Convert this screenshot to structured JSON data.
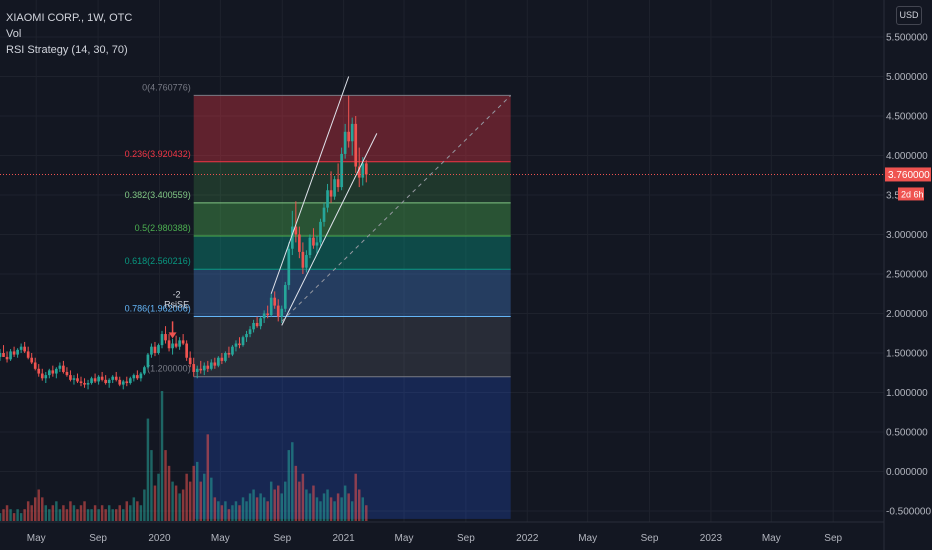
{
  "header": {
    "symbol_line": "XIAOMI CORP., 1W, OTC",
    "indicator_vol": "Vol",
    "indicator_rsi": "RSI Strategy (14, 30, 70)",
    "currency_button": "USD"
  },
  "chart_data": {
    "type": "candlestick",
    "price_axis": {
      "ticks": [
        5.5,
        5.0,
        4.5,
        4.0,
        3.5,
        3.0,
        2.5,
        2.0,
        1.5,
        1.0,
        0.5,
        0.0,
        -0.5
      ],
      "tick_labels": [
        "5.500000",
        "5.000000",
        "4.500000",
        "4.000000",
        "3.5",
        "3.000000",
        "2.500000",
        "2.000000",
        "1.500000",
        "1.000000",
        "0.500000",
        "0.000000",
        "-0.500000"
      ],
      "ylim": [
        -0.6,
        5.8
      ]
    },
    "time_axis": {
      "labels": [
        "May",
        "Sep",
        "2020",
        "May",
        "Sep",
        "2021",
        "May",
        "Sep",
        "2022",
        "May",
        "Sep",
        "2023",
        "May",
        "Sep"
      ],
      "start": "2019-02-18",
      "end": "2023-12-11",
      "label_dates": [
        "2019-05-01",
        "2019-09-01",
        "2020-01-01",
        "2020-05-01",
        "2020-09-01",
        "2021-01-01",
        "2021-05-01",
        "2021-09-01",
        "2022-01-01",
        "2022-05-01",
        "2022-09-01",
        "2023-01-01",
        "2023-05-01",
        "2023-09-01"
      ]
    },
    "current_price": {
      "value": 3.76,
      "label": "3.760000",
      "countdown": "2d 6h"
    },
    "fibonacci": {
      "start_date": "2020-03-09",
      "end_date": "2021-11-29",
      "levels": [
        {
          "ratio_label": "0(4.760776)",
          "price": 4.760776,
          "color": "#787b86",
          "fill": "rgba(242,54,69,0.35)"
        },
        {
          "ratio_label": "0.236(3.920432)",
          "price": 3.920432,
          "color": "#f23645",
          "fill": "rgba(76,175,80,0.22)"
        },
        {
          "ratio_label": "0.382(3.400559)",
          "price": 3.400559,
          "color": "#81c784",
          "fill": "rgba(76,175,80,0.40)"
        },
        {
          "ratio_label": "0.5(2.980388)",
          "price": 2.980388,
          "color": "#4caf50",
          "fill": "rgba(8,153,129,0.40)"
        },
        {
          "ratio_label": "0.618(2.560216)",
          "price": 2.560216,
          "color": "#089981",
          "fill": "rgba(66,120,190,0.40)"
        },
        {
          "ratio_label": "0.786(1.962006)",
          "price": 1.962006,
          "color": "#64b5f6",
          "fill": "rgba(120,123,134,0.22)"
        },
        {
          "ratio_label": "(1.200000)",
          "price": 1.2,
          "color": "#787b86",
          "fill": "rgba(41,98,255,0.22)"
        }
      ],
      "extension_to_price": -0.6
    },
    "signal": {
      "label": "RsiSE",
      "count": "-2",
      "date": "2020-01-27",
      "price": 1.85
    },
    "trend_lines": [
      {
        "from": [
          "2020-08-10",
          2.25
        ],
        "to": [
          "2021-01-11",
          5.0
        ]
      },
      {
        "from": [
          "2020-08-31",
          1.85
        ],
        "to": [
          "2021-03-08",
          4.28
        ]
      },
      {
        "from": [
          "2020-08-31",
          1.9
        ],
        "to": [
          "2021-11-29",
          4.76
        ],
        "dashed": true
      }
    ],
    "candles": [
      [
        "2019-02-18",
        1.45,
        1.55,
        1.4,
        1.5,
        2
      ],
      [
        "2019-02-25",
        1.5,
        1.6,
        1.45,
        1.45,
        3
      ],
      [
        "2019-03-04",
        1.45,
        1.52,
        1.38,
        1.42,
        4
      ],
      [
        "2019-03-11",
        1.42,
        1.55,
        1.4,
        1.52,
        3
      ],
      [
        "2019-03-18",
        1.52,
        1.58,
        1.45,
        1.48,
        2
      ],
      [
        "2019-03-25",
        1.48,
        1.56,
        1.44,
        1.54,
        3
      ],
      [
        "2019-04-01",
        1.54,
        1.62,
        1.5,
        1.58,
        2
      ],
      [
        "2019-04-08",
        1.58,
        1.64,
        1.5,
        1.52,
        3
      ],
      [
        "2019-04-15",
        1.52,
        1.58,
        1.42,
        1.44,
        5
      ],
      [
        "2019-04-22",
        1.44,
        1.5,
        1.36,
        1.38,
        4
      ],
      [
        "2019-04-29",
        1.38,
        1.44,
        1.28,
        1.3,
        6
      ],
      [
        "2019-05-06",
        1.3,
        1.36,
        1.2,
        1.24,
        8
      ],
      [
        "2019-05-13",
        1.24,
        1.3,
        1.15,
        1.18,
        6
      ],
      [
        "2019-05-20",
        1.18,
        1.26,
        1.12,
        1.22,
        4
      ],
      [
        "2019-05-27",
        1.22,
        1.3,
        1.18,
        1.28,
        3
      ],
      [
        "2019-06-03",
        1.28,
        1.34,
        1.2,
        1.24,
        4
      ],
      [
        "2019-06-10",
        1.24,
        1.32,
        1.18,
        1.3,
        5
      ],
      [
        "2019-06-17",
        1.3,
        1.38,
        1.26,
        1.34,
        3
      ],
      [
        "2019-06-24",
        1.34,
        1.4,
        1.24,
        1.26,
        4
      ],
      [
        "2019-07-01",
        1.26,
        1.32,
        1.2,
        1.22,
        3
      ],
      [
        "2019-07-08",
        1.22,
        1.28,
        1.14,
        1.16,
        5
      ],
      [
        "2019-07-15",
        1.16,
        1.22,
        1.1,
        1.18,
        4
      ],
      [
        "2019-07-22",
        1.18,
        1.24,
        1.12,
        1.14,
        3
      ],
      [
        "2019-07-29",
        1.14,
        1.2,
        1.08,
        1.12,
        4
      ],
      [
        "2019-08-05",
        1.12,
        1.18,
        1.06,
        1.1,
        5
      ],
      [
        "2019-08-12",
        1.1,
        1.16,
        1.04,
        1.12,
        3
      ],
      [
        "2019-08-19",
        1.12,
        1.2,
        1.1,
        1.18,
        3
      ],
      [
        "2019-08-26",
        1.18,
        1.24,
        1.12,
        1.14,
        4
      ],
      [
        "2019-09-02",
        1.14,
        1.22,
        1.1,
        1.2,
        3
      ],
      [
        "2019-09-09",
        1.2,
        1.26,
        1.14,
        1.16,
        4
      ],
      [
        "2019-09-16",
        1.16,
        1.22,
        1.1,
        1.12,
        3
      ],
      [
        "2019-09-23",
        1.12,
        1.18,
        1.06,
        1.16,
        4
      ],
      [
        "2019-09-30",
        1.16,
        1.22,
        1.12,
        1.2,
        3
      ],
      [
        "2019-10-07",
        1.2,
        1.26,
        1.14,
        1.16,
        3
      ],
      [
        "2019-10-14",
        1.16,
        1.2,
        1.08,
        1.1,
        4
      ],
      [
        "2019-10-21",
        1.1,
        1.16,
        1.04,
        1.14,
        3
      ],
      [
        "2019-10-28",
        1.14,
        1.2,
        1.08,
        1.12,
        5
      ],
      [
        "2019-11-04",
        1.12,
        1.2,
        1.1,
        1.18,
        4
      ],
      [
        "2019-11-11",
        1.18,
        1.24,
        1.14,
        1.22,
        6
      ],
      [
        "2019-11-18",
        1.22,
        1.28,
        1.16,
        1.18,
        5
      ],
      [
        "2019-11-25",
        1.18,
        1.26,
        1.14,
        1.24,
        4
      ],
      [
        "2019-12-02",
        1.24,
        1.34,
        1.22,
        1.32,
        8
      ],
      [
        "2019-12-09",
        1.32,
        1.5,
        1.3,
        1.48,
        26
      ],
      [
        "2019-12-16",
        1.48,
        1.62,
        1.44,
        1.58,
        18
      ],
      [
        "2019-12-23",
        1.58,
        1.64,
        1.46,
        1.5,
        9
      ],
      [
        "2019-12-30",
        1.5,
        1.62,
        1.48,
        1.6,
        12
      ],
      [
        "2020-01-06",
        1.6,
        1.78,
        1.56,
        1.74,
        33
      ],
      [
        "2020-01-13",
        1.74,
        1.84,
        1.62,
        1.66,
        18
      ],
      [
        "2020-01-20",
        1.66,
        1.74,
        1.52,
        1.56,
        14
      ],
      [
        "2020-01-27",
        1.56,
        1.68,
        1.48,
        1.62,
        10
      ],
      [
        "2020-02-03",
        1.62,
        1.72,
        1.56,
        1.58,
        9
      ],
      [
        "2020-02-10",
        1.58,
        1.7,
        1.54,
        1.66,
        7
      ],
      [
        "2020-02-17",
        1.66,
        1.74,
        1.6,
        1.62,
        8
      ],
      [
        "2020-02-24",
        1.62,
        1.66,
        1.4,
        1.44,
        12
      ],
      [
        "2020-03-02",
        1.44,
        1.52,
        1.32,
        1.36,
        10
      ],
      [
        "2020-03-09",
        1.36,
        1.44,
        1.2,
        1.26,
        14
      ],
      [
        "2020-03-16",
        1.26,
        1.34,
        1.18,
        1.3,
        15
      ],
      [
        "2020-03-23",
        1.3,
        1.4,
        1.24,
        1.28,
        10
      ],
      [
        "2020-03-30",
        1.28,
        1.38,
        1.22,
        1.34,
        12
      ],
      [
        "2020-04-06",
        1.34,
        1.4,
        1.26,
        1.3,
        22
      ],
      [
        "2020-04-13",
        1.3,
        1.42,
        1.28,
        1.38,
        11
      ],
      [
        "2020-04-20",
        1.38,
        1.44,
        1.3,
        1.34,
        6
      ],
      [
        "2020-04-27",
        1.34,
        1.46,
        1.32,
        1.44,
        5
      ],
      [
        "2020-05-04",
        1.44,
        1.5,
        1.36,
        1.4,
        4
      ],
      [
        "2020-05-11",
        1.4,
        1.52,
        1.38,
        1.5,
        5
      ],
      [
        "2020-05-18",
        1.5,
        1.58,
        1.44,
        1.48,
        3
      ],
      [
        "2020-05-25",
        1.48,
        1.6,
        1.46,
        1.58,
        4
      ],
      [
        "2020-06-01",
        1.58,
        1.66,
        1.52,
        1.62,
        5
      ],
      [
        "2020-06-08",
        1.62,
        1.7,
        1.56,
        1.6,
        4
      ],
      [
        "2020-06-15",
        1.6,
        1.72,
        1.58,
        1.7,
        6
      ],
      [
        "2020-06-22",
        1.7,
        1.78,
        1.64,
        1.74,
        5
      ],
      [
        "2020-06-29",
        1.74,
        1.84,
        1.7,
        1.8,
        7
      ],
      [
        "2020-07-06",
        1.8,
        1.92,
        1.76,
        1.88,
        8
      ],
      [
        "2020-07-13",
        1.88,
        1.96,
        1.82,
        1.84,
        6
      ],
      [
        "2020-07-20",
        1.84,
        1.96,
        1.8,
        1.94,
        7
      ],
      [
        "2020-07-27",
        1.94,
        2.04,
        1.88,
        2.0,
        6
      ],
      [
        "2020-08-03",
        2.0,
        2.1,
        1.94,
        1.98,
        5
      ],
      [
        "2020-08-10",
        1.98,
        2.25,
        1.96,
        2.2,
        10
      ],
      [
        "2020-08-17",
        2.2,
        2.28,
        2.06,
        2.1,
        8
      ],
      [
        "2020-08-24",
        2.1,
        2.18,
        1.9,
        1.96,
        9
      ],
      [
        "2020-08-31",
        1.96,
        2.1,
        1.88,
        2.06,
        7
      ],
      [
        "2020-09-07",
        2.06,
        2.4,
        2.02,
        2.36,
        10
      ],
      [
        "2020-09-14",
        2.36,
        2.9,
        2.3,
        2.82,
        18
      ],
      [
        "2020-09-21",
        2.82,
        3.3,
        2.74,
        3.1,
        20
      ],
      [
        "2020-09-28",
        3.1,
        3.42,
        2.9,
        3.0,
        14
      ],
      [
        "2020-10-05",
        3.0,
        3.1,
        2.7,
        2.78,
        10
      ],
      [
        "2020-10-12",
        2.78,
        2.9,
        2.5,
        2.58,
        12
      ],
      [
        "2020-10-19",
        2.58,
        2.8,
        2.52,
        2.74,
        8
      ],
      [
        "2020-10-26",
        2.74,
        3.0,
        2.7,
        2.96,
        7
      ],
      [
        "2020-11-02",
        2.96,
        3.08,
        2.82,
        2.86,
        9
      ],
      [
        "2020-11-09",
        2.86,
        2.98,
        2.76,
        2.9,
        6
      ],
      [
        "2020-11-16",
        2.9,
        3.2,
        2.86,
        3.16,
        5
      ],
      [
        "2020-11-23",
        3.16,
        3.4,
        3.1,
        3.34,
        7
      ],
      [
        "2020-11-30",
        3.34,
        3.64,
        3.28,
        3.56,
        8
      ],
      [
        "2020-12-07",
        3.56,
        3.8,
        3.4,
        3.48,
        6
      ],
      [
        "2020-12-14",
        3.48,
        3.74,
        3.44,
        3.7,
        5
      ],
      [
        "2020-12-21",
        3.7,
        3.9,
        3.54,
        3.6,
        7
      ],
      [
        "2020-12-28",
        3.6,
        4.1,
        3.56,
        4.02,
        6
      ],
      [
        "2021-01-04",
        4.02,
        4.4,
        3.96,
        4.3,
        9
      ],
      [
        "2021-01-11",
        4.3,
        4.76,
        4.1,
        4.18,
        7
      ],
      [
        "2021-01-18",
        4.18,
        4.48,
        4.0,
        4.4,
        5
      ],
      [
        "2021-01-25",
        4.4,
        4.5,
        3.78,
        3.86,
        12
      ],
      [
        "2021-02-01",
        3.86,
        4.1,
        3.6,
        3.72,
        8
      ],
      [
        "2021-02-08",
        3.72,
        3.98,
        3.62,
        3.9,
        6
      ],
      [
        "2021-02-15",
        3.9,
        3.94,
        3.66,
        3.76,
        4
      ]
    ]
  }
}
